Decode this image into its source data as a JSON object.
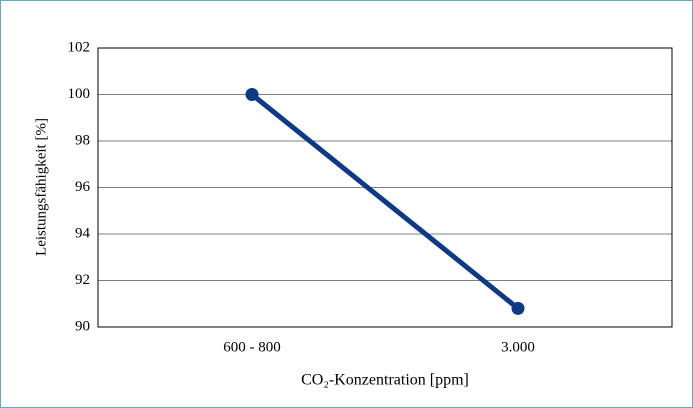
{
  "chart_data": {
    "type": "line",
    "categories": [
      "600 - 800",
      "3.000"
    ],
    "series": [
      {
        "name": "Leistungsfähigkeit",
        "color": "#0d3a87",
        "values": [
          100,
          90.8
        ]
      }
    ],
    "ylim": [
      90,
      102
    ],
    "yticks": [
      90,
      92,
      94,
      96,
      98,
      100,
      102
    ],
    "y_label": "Leistungsfähigkeit [%]",
    "x_label": "CO₂-Konzentration [ppm]",
    "grid": true
  }
}
